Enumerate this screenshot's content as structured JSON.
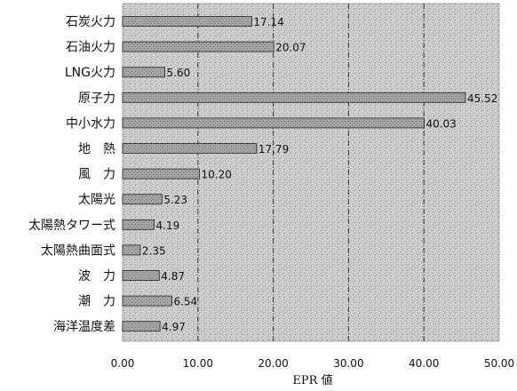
{
  "chart_data": {
    "type": "bar",
    "orientation": "horizontal",
    "categories": [
      "石炭火力",
      "石油火力",
      "LNG火力",
      "原子力",
      "中小水力",
      "地　熱",
      "風　力",
      "太陽光",
      "太陽熱タワー式",
      "太陽熱曲面式",
      "波　力",
      "潮　力",
      "海洋温度差"
    ],
    "values": [
      17.14,
      20.07,
      5.6,
      45.52,
      40.03,
      17.79,
      10.2,
      5.23,
      4.19,
      2.35,
      4.87,
      6.54,
      4.97
    ],
    "value_labels": [
      "17.14",
      "20.07",
      "5.60",
      "45.52",
      "40.03",
      "17.79",
      "10.20",
      "5.23",
      "4.19",
      "2.35",
      "4.87",
      "6.54",
      "4.97"
    ],
    "xlabel": "EPR 値",
    "ylabel": "",
    "xlim": [
      0,
      50
    ],
    "xticks": [
      "0.00",
      "10.00",
      "20.00",
      "30.00",
      "40.00",
      "50.00"
    ],
    "gridlines": [
      10,
      20,
      30,
      40
    ],
    "grid": "vertical dashed",
    "background": "stippled gray",
    "colors": {
      "bar_fill": "#9a9a9a",
      "bar_stroke": "#222222",
      "plot_bg": "#c9c9c9",
      "grid": "#333333",
      "text": "#111111"
    }
  }
}
